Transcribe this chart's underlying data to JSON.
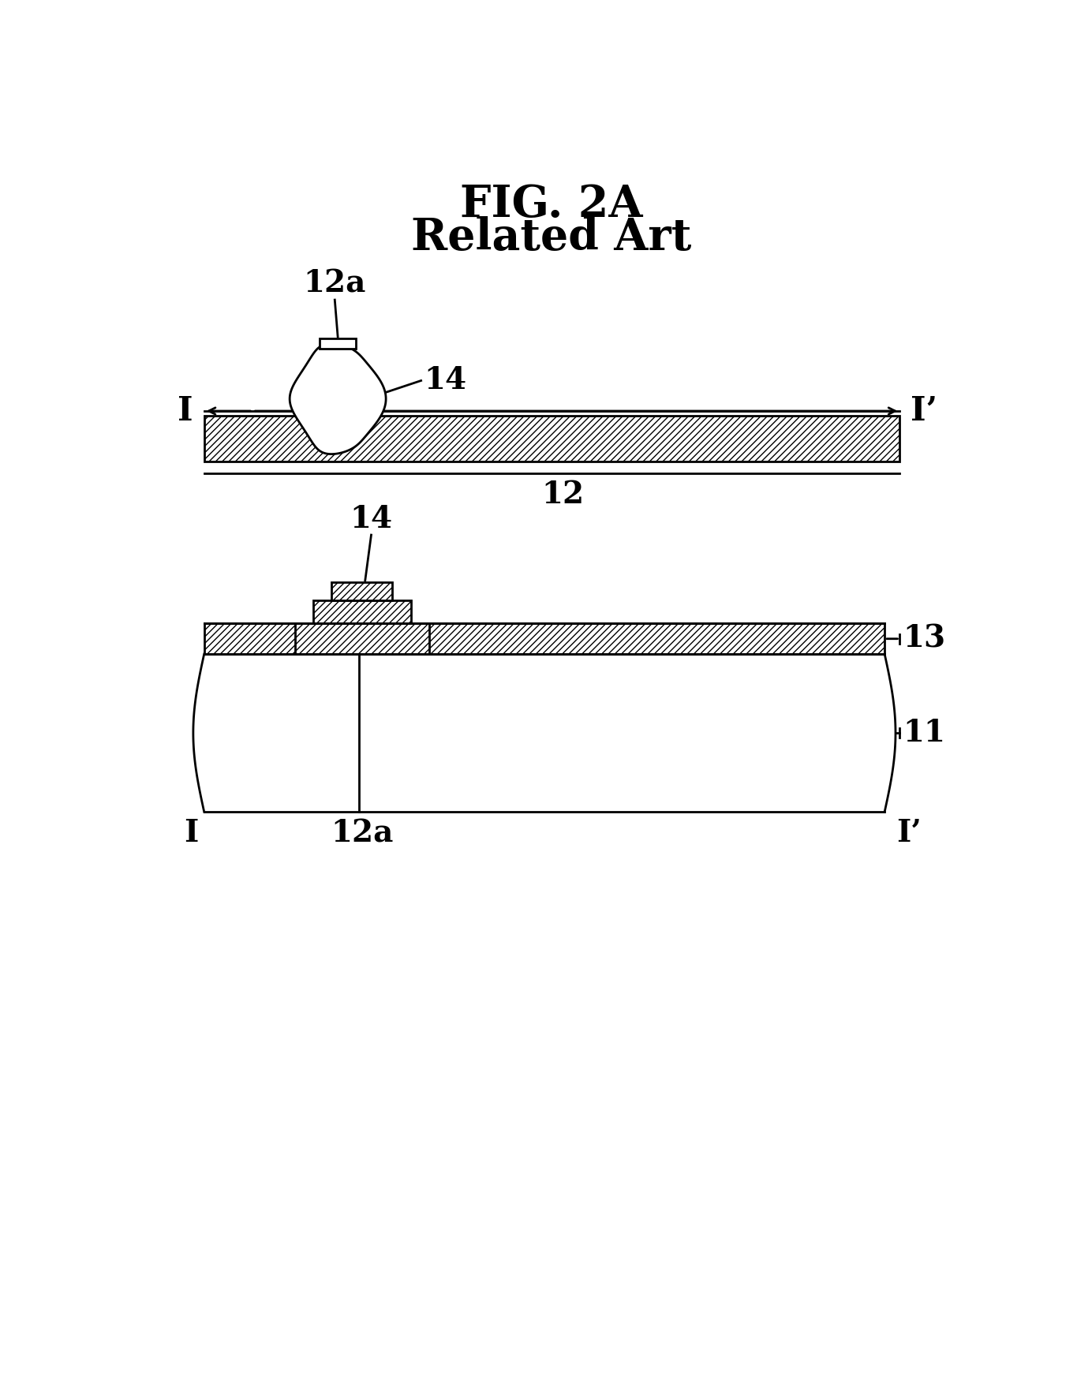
{
  "title_line1": "FIG. 2A",
  "title_line2": "Related Art",
  "bg_color": "#ffffff",
  "line_color": "#000000",
  "label_12a_top": "12a",
  "label_14_top": "14",
  "label_I_left": "I",
  "label_Iprime_right": "I’",
  "label_12_bottom": "12",
  "label_14_bottom": "14",
  "label_13": "13",
  "label_11": "11",
  "label_I_left2": "I",
  "label_12a_bottom": "12a",
  "label_Iprime_right2": "I’",
  "fig_width": 13.65,
  "fig_height": 17.62,
  "dpi": 100
}
